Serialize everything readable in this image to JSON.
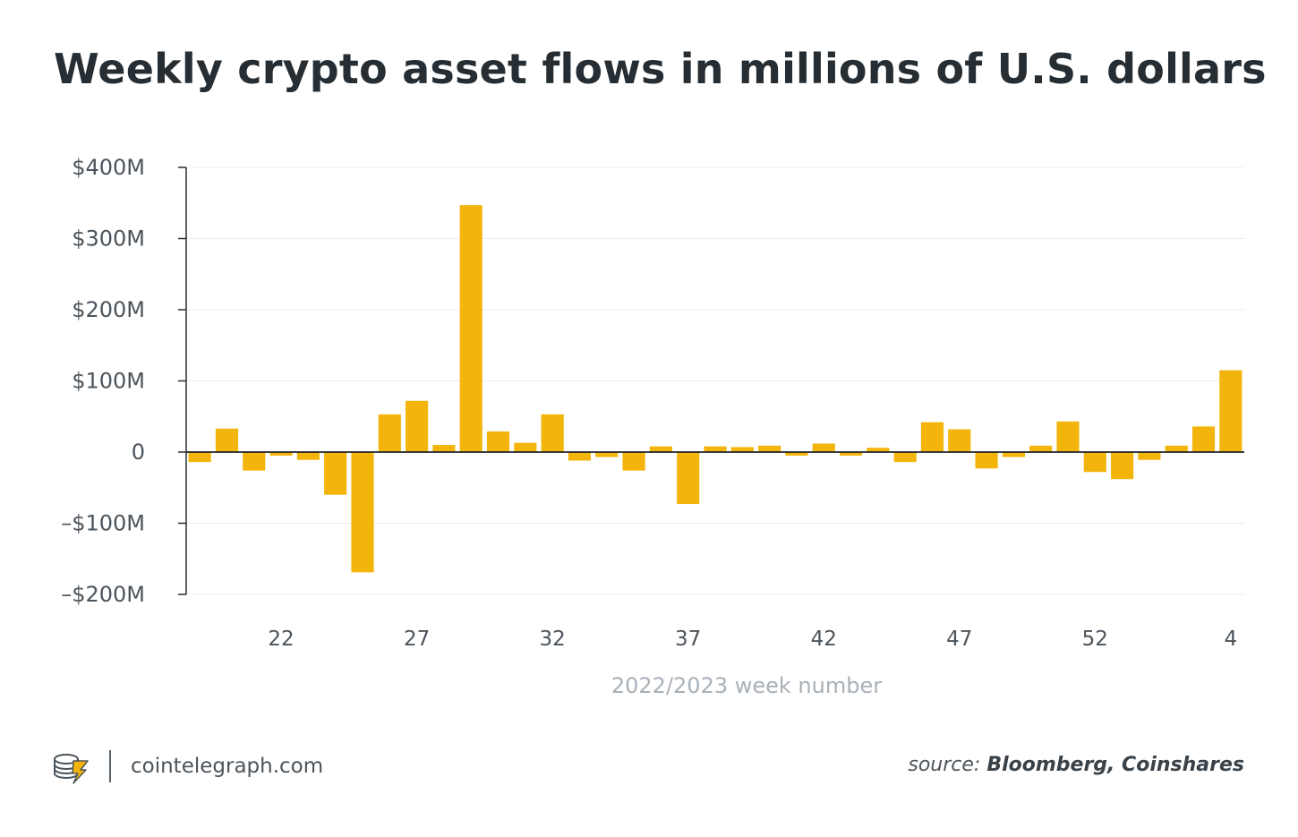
{
  "title": "Weekly crypto asset flows in millions of U.S. dollars",
  "footer": {
    "site": "cointelegraph.com",
    "source_prefix": "source:",
    "source_names": "Bloomberg, Coinshares"
  },
  "colors": {
    "bar": "#f3b50c",
    "text": "#262e33",
    "axis_label": "#4c545b",
    "x_title": "#a8b0b8",
    "grid": "#e9ecef"
  },
  "chart_data": {
    "type": "bar",
    "xlabel": "2022/2023 week number",
    "ylabel": "",
    "ylim": [
      -200,
      400
    ],
    "yticks": [
      400,
      300,
      200,
      100,
      0,
      -100,
      -200
    ],
    "ytick_labels": [
      "$400M",
      "$300M",
      "$200M",
      "$100M",
      "0",
      "–$100M",
      "–$200M"
    ],
    "xtick_labels": [
      {
        "index": 3,
        "label": "22"
      },
      {
        "index": 8,
        "label": "27"
      },
      {
        "index": 13,
        "label": "32"
      },
      {
        "index": 18,
        "label": "37"
      },
      {
        "index": 23,
        "label": "42"
      },
      {
        "index": 28,
        "label": "47"
      },
      {
        "index": 33,
        "label": "52"
      },
      {
        "index": 38,
        "label": "4"
      }
    ],
    "categories": [
      "19",
      "20",
      "21",
      "22",
      "23",
      "24",
      "25",
      "26",
      "27",
      "28",
      "29",
      "30",
      "31",
      "32",
      "33",
      "34",
      "35",
      "36",
      "37",
      "38",
      "39",
      "40",
      "41",
      "42",
      "43",
      "44",
      "45",
      "46",
      "47",
      "48",
      "49",
      "50",
      "51",
      "52",
      "53",
      "1",
      "2",
      "3",
      "4"
    ],
    "values": [
      -14,
      33,
      -26,
      -5,
      -11,
      -60,
      -169,
      53,
      72,
      10,
      347,
      29,
      13,
      53,
      -12,
      -7,
      -26,
      8,
      -73,
      8,
      7,
      9,
      -5,
      12,
      -5,
      6,
      -14,
      42,
      32,
      -23,
      -7,
      9,
      43,
      -28,
      -38,
      -11,
      9,
      36,
      115
    ],
    "grid": true,
    "legend": "none"
  }
}
